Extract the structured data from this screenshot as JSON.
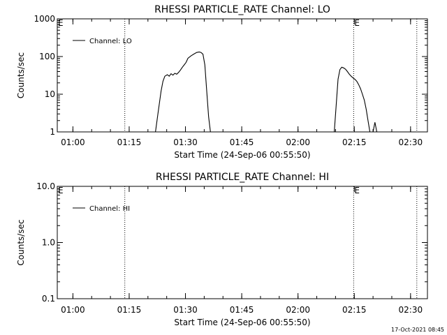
{
  "chart_data": [
    {
      "type": "line",
      "title": "RHESSI PARTICLE_RATE Channel: LO",
      "xlabel": "Start Time (24-Sep-06 00:55:50)",
      "ylabel": "Counts/sec",
      "yscale": "log",
      "xlim": [
        "00:55:50",
        "02:34:30"
      ],
      "ylim": [
        1,
        1000
      ],
      "x_ticks": [
        "01:00",
        "01:15",
        "01:30",
        "01:45",
        "02:00",
        "02:15",
        "02:30"
      ],
      "y_ticks": [
        "1",
        "10",
        "100",
        "1000"
      ],
      "legend": {
        "position": "top-left",
        "entries": [
          "Channel: LO"
        ]
      },
      "marker_label": "E",
      "vertical_markers": [
        "01:13:50",
        "02:14:50",
        "02:31:40"
      ],
      "series": [
        {
          "name": "Channel: LO",
          "segments": [
            [
              [
                "01:22:00",
                1
              ],
              [
                "01:22:40",
                3
              ],
              [
                "01:23:30",
                12
              ],
              [
                "01:24:00",
                22
              ],
              [
                "01:24:30",
                30
              ],
              [
                "01:25:10",
                33
              ],
              [
                "01:25:40",
                30
              ],
              [
                "01:26:10",
                35
              ],
              [
                "01:26:40",
                32
              ],
              [
                "01:27:10",
                36
              ],
              [
                "01:27:40",
                34
              ],
              [
                "01:28:10",
                38
              ],
              [
                "01:28:40",
                44
              ],
              [
                "01:29:10",
                52
              ],
              [
                "01:29:40",
                60
              ],
              [
                "01:30:10",
                70
              ],
              [
                "01:30:40",
                90
              ],
              [
                "01:31:30",
                105
              ],
              [
                "01:32:20",
                118
              ],
              [
                "01:33:00",
                128
              ],
              [
                "01:33:40",
                132
              ],
              [
                "01:34:10",
                128
              ],
              [
                "01:34:40",
                115
              ],
              [
                "01:35:10",
                60
              ],
              [
                "01:35:40",
                12
              ],
              [
                "01:36:10",
                2.5
              ],
              [
                "01:36:40",
                1
              ]
            ],
            [
              [
                "02:09:40",
                1
              ],
              [
                "02:10:10",
                5
              ],
              [
                "02:10:40",
                25
              ],
              [
                "02:11:10",
                45
              ],
              [
                "02:11:40",
                52
              ],
              [
                "02:12:10",
                50
              ],
              [
                "02:12:40",
                46
              ],
              [
                "02:13:10",
                40
              ],
              [
                "02:13:40",
                34
              ],
              [
                "02:14:10",
                30
              ],
              [
                "02:14:40",
                27
              ],
              [
                "02:15:10",
                25
              ],
              [
                "02:15:40",
                22
              ],
              [
                "02:16:10",
                18
              ],
              [
                "02:16:40",
                14
              ],
              [
                "02:17:10",
                10
              ],
              [
                "02:17:40",
                7
              ],
              [
                "02:18:10",
                4
              ],
              [
                "02:18:40",
                2
              ],
              [
                "02:19:10",
                1
              ]
            ],
            [
              [
                "02:20:00",
                1
              ],
              [
                "02:20:30",
                1.8
              ],
              [
                "02:21:00",
                1
              ]
            ]
          ]
        }
      ]
    },
    {
      "type": "line",
      "title": "RHESSI PARTICLE_RATE Channel: HI",
      "xlabel": "Start Time (24-Sep-06 00:55:50)",
      "ylabel": "Counts/sec",
      "yscale": "log",
      "xlim": [
        "00:55:50",
        "02:34:30"
      ],
      "ylim": [
        0.1,
        10
      ],
      "x_ticks": [
        "01:00",
        "01:15",
        "01:30",
        "01:45",
        "02:00",
        "02:15",
        "02:30"
      ],
      "y_ticks": [
        "0.1",
        "1.0",
        "10.0"
      ],
      "legend": {
        "position": "top-left",
        "entries": [
          "Channel: HI"
        ]
      },
      "marker_label": "E",
      "vertical_markers": [
        "01:13:50",
        "02:14:50",
        "02:31:40"
      ],
      "series": [
        {
          "name": "Channel: HI",
          "segments": []
        }
      ]
    }
  ],
  "footer": {
    "timestamp": "17-Oct-2021 08:45"
  }
}
